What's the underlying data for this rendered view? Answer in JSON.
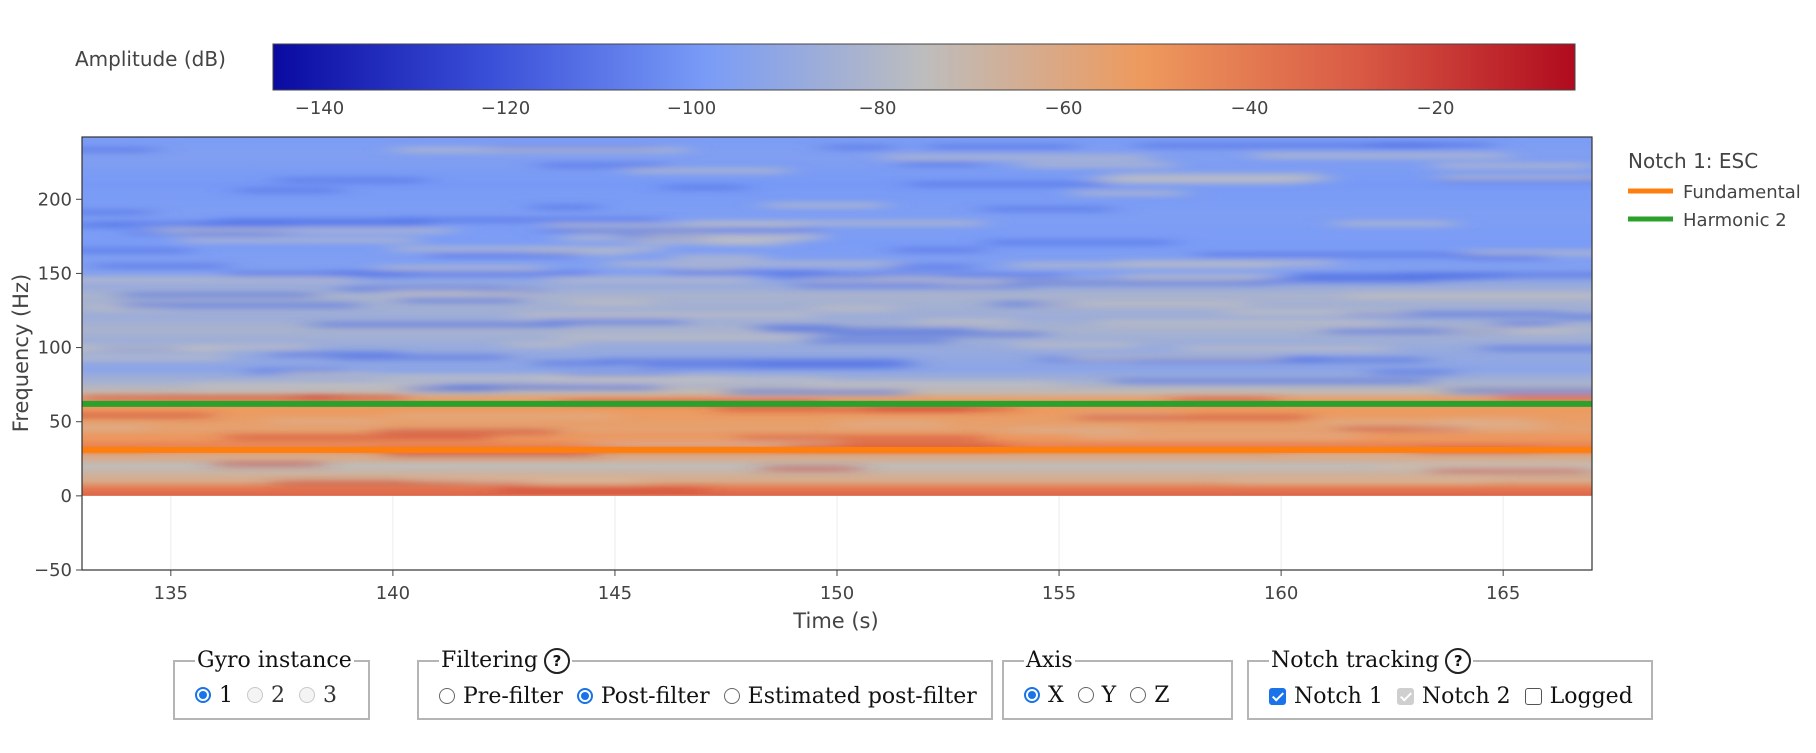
{
  "chart_data": {
    "type": "heatmap",
    "colorbar": {
      "title": "Amplitude (dB)",
      "range": [
        -145,
        -5
      ],
      "ticks": [
        -140,
        -120,
        -100,
        -80,
        -60,
        -40,
        -20
      ],
      "tick_labels": [
        "−140",
        "−120",
        "−100",
        "−80",
        "−60",
        "−40",
        "−20"
      ],
      "colorscale": [
        "#0a0aa0",
        "#3a4fd8",
        "#7a9cf7",
        "#bdbdbd",
        "#ee9a5e",
        "#d95a45",
        "#b00b1e"
      ]
    },
    "xlabel": "Time (s)",
    "ylabel": "Frequency (Hz)",
    "xlim": [
      133,
      167
    ],
    "ylim": [
      -50,
      242
    ],
    "heatmap_yrange": [
      0,
      242
    ],
    "x_ticks": [
      135,
      140,
      145,
      150,
      155,
      160,
      165
    ],
    "y_ticks": [
      0,
      50,
      100,
      150,
      200
    ],
    "y_tick_labels": [
      "−50",
      "0",
      "50",
      "100",
      "150",
      "200"
    ],
    "y_tick_values": [
      -50,
      0,
      50,
      100,
      150,
      200
    ],
    "amplitude_profile": [
      {
        "freq": 0,
        "db": -32
      },
      {
        "freq": 5,
        "db": -40
      },
      {
        "freq": 10,
        "db": -62
      },
      {
        "freq": 20,
        "db": -74
      },
      {
        "freq": 27,
        "db": -60
      },
      {
        "freq": 31,
        "db": -40
      },
      {
        "freq": 38,
        "db": -50
      },
      {
        "freq": 45,
        "db": -56
      },
      {
        "freq": 52,
        "db": -54
      },
      {
        "freq": 58,
        "db": -52
      },
      {
        "freq": 64,
        "db": -52
      },
      {
        "freq": 70,
        "db": -72
      },
      {
        "freq": 76,
        "db": -82
      },
      {
        "freq": 85,
        "db": -92
      },
      {
        "freq": 100,
        "db": -88
      },
      {
        "freq": 112,
        "db": -82
      },
      {
        "freq": 120,
        "db": -86
      },
      {
        "freq": 135,
        "db": -82
      },
      {
        "freq": 150,
        "db": -95
      },
      {
        "freq": 170,
        "db": -98
      },
      {
        "freq": 190,
        "db": -97
      },
      {
        "freq": 210,
        "db": -99
      },
      {
        "freq": 230,
        "db": -96
      },
      {
        "freq": 242,
        "db": -98
      }
    ],
    "series": [
      {
        "name": "Fundamental",
        "color": "#ff7f0e",
        "x": [
          133,
          167
        ],
        "y": [
          31,
          31
        ]
      },
      {
        "name": "Harmonic 2",
        "color": "#2ca02c",
        "x": [
          133,
          167
        ],
        "y": [
          62,
          62
        ]
      }
    ],
    "legend": {
      "title": "Notch 1: ESC",
      "placement": "right"
    },
    "grid": true
  },
  "controls": {
    "gyro": {
      "legend": "Gyro instance",
      "options": [
        {
          "label": "1",
          "checked": true,
          "disabled": false
        },
        {
          "label": "2",
          "checked": false,
          "disabled": true
        },
        {
          "label": "3",
          "checked": false,
          "disabled": true
        }
      ]
    },
    "filtering": {
      "legend": "Filtering",
      "help": "?",
      "options": [
        {
          "label": "Pre-filter",
          "checked": false
        },
        {
          "label": "Post-filter",
          "checked": true
        },
        {
          "label": "Estimated post-filter",
          "checked": false
        }
      ]
    },
    "axis": {
      "legend": "Axis",
      "options": [
        {
          "label": "X",
          "checked": true
        },
        {
          "label": "Y",
          "checked": false
        },
        {
          "label": "Z",
          "checked": false
        }
      ]
    },
    "notch": {
      "legend": "Notch tracking",
      "help": "?",
      "options": [
        {
          "label": "Notch 1",
          "checked": true,
          "disabled": false
        },
        {
          "label": "Notch 2",
          "checked": true,
          "disabled": true
        },
        {
          "label": "Logged",
          "checked": false,
          "disabled": false
        }
      ]
    }
  }
}
